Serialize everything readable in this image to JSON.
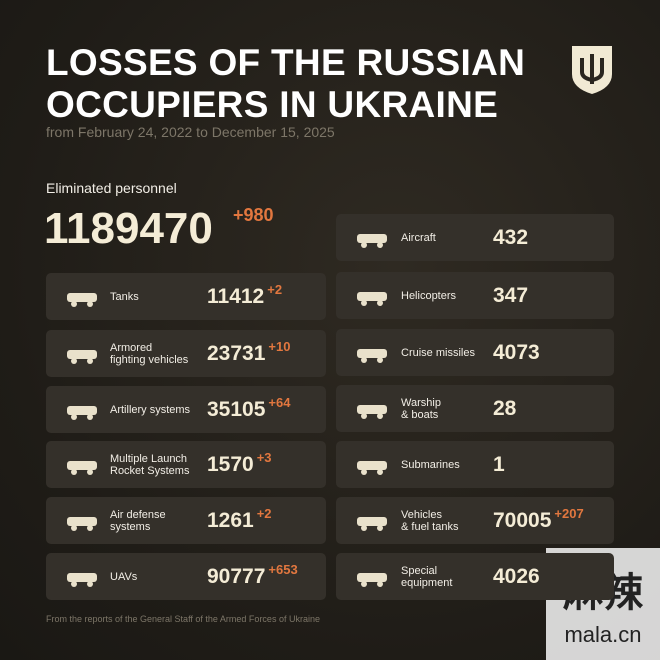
{
  "header": {
    "title_lines": [
      "LOSSES OF THE RUSSIAN",
      "OCCUPIERS IN UKRAINE"
    ],
    "subtitle": "from February 24, 2022 to December 15, 2025"
  },
  "personnel": {
    "label": "Eliminated personnel",
    "value": "1189470",
    "delta": "+980"
  },
  "left": [
    {
      "label_lines": [
        "Tanks"
      ],
      "value": "11412",
      "delta": "+2"
    },
    {
      "label_lines": [
        "Armored",
        "fighting vehicles"
      ],
      "value": "23731",
      "delta": "+10"
    },
    {
      "label_lines": [
        "Artillery systems"
      ],
      "value": "35105",
      "delta": "+64"
    },
    {
      "label_lines": [
        "Multiple Launch",
        "Rocket Systems"
      ],
      "value": "1570",
      "delta": "+3"
    },
    {
      "label_lines": [
        "Air defense",
        "systems"
      ],
      "value": "1261",
      "delta": "+2"
    },
    {
      "label_lines": [
        "UAVs"
      ],
      "value": "90777",
      "delta": "+653"
    }
  ],
  "right": [
    {
      "label_lines": [
        "Aircraft"
      ],
      "value": "432"
    },
    {
      "label_lines": [
        "Helicopters"
      ],
      "value": "347"
    },
    {
      "label_lines": [
        "Cruise missiles"
      ],
      "value": "4073"
    },
    {
      "label_lines": [
        "Warship",
        "& boats"
      ],
      "value": "28"
    },
    {
      "label_lines": [
        "Submarines"
      ],
      "value": "1"
    },
    {
      "label_lines": [
        "Vehicles",
        "& fuel tanks"
      ],
      "value": "70005",
      "delta": "+207"
    },
    {
      "label_lines": [
        "Special",
        "equipment"
      ],
      "value": "4026"
    }
  ],
  "footer": "From the reports of the General Staff of the Armed Forces of Ukraine",
  "watermark": {
    "main": "麻辣",
    "site": "mala.cn"
  }
}
